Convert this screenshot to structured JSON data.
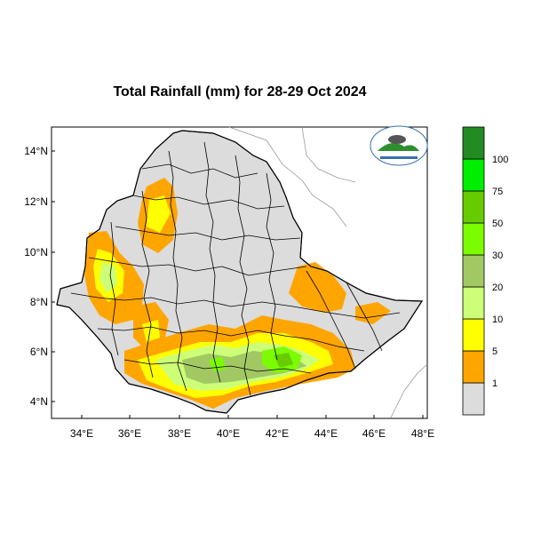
{
  "title": "Total Rainfall (mm) for 28-29 Oct 2024",
  "axes": {
    "lon_ticks": [
      "34°E",
      "36°E",
      "38°E",
      "40°E",
      "42°E",
      "44°E",
      "46°E",
      "48°E"
    ],
    "lat_ticks": [
      "14°N",
      "12°N",
      "10°N",
      "8°N",
      "6°N",
      "4°N"
    ]
  },
  "legend": {
    "bins": [
      {
        "color": "#dcdcdc",
        "label": "1"
      },
      {
        "color": "#ffa500",
        "label": "5"
      },
      {
        "color": "#ffff00",
        "label": "10"
      },
      {
        "color": "#ccff77",
        "label": "20"
      },
      {
        "color": "#a2c864",
        "label": "30"
      },
      {
        "color": "#7cfc00",
        "label": "50"
      },
      {
        "color": "#66cc00",
        "label": "75"
      },
      {
        "color": "#00ee00",
        "label": "100"
      },
      {
        "color": "#228b22",
        "label": ""
      }
    ]
  },
  "logo": {
    "name": "ethiopian-meteorology-logo"
  }
}
